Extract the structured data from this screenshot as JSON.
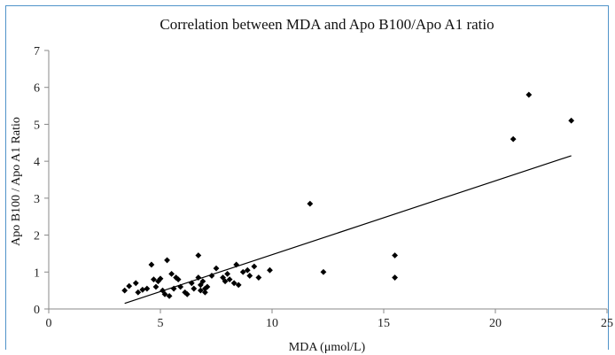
{
  "chart_data": {
    "type": "scatter",
    "title": "Correlation between MDA and Apo B100/Apo A1 ratio",
    "xlabel": "MDA (μmol/L)",
    "ylabel": "Apo B100 / Apo A1 Ratio",
    "xlim": [
      0,
      25
    ],
    "ylim": [
      0,
      7
    ],
    "xticks": [
      "0",
      "5",
      "10",
      "15",
      "20",
      "25"
    ],
    "yticks": [
      "0",
      "1",
      "2",
      "3",
      "4",
      "5",
      "6",
      "7"
    ],
    "grid": false,
    "legend": "none",
    "marker": "diamond",
    "colors": {
      "point": "#000000",
      "line": "#000000",
      "axis": "#888888",
      "frame": "#4f93c9"
    },
    "points": [
      {
        "x": 3.4,
        "y": 0.5
      },
      {
        "x": 3.6,
        "y": 0.62
      },
      {
        "x": 3.9,
        "y": 0.7
      },
      {
        "x": 4.0,
        "y": 0.45
      },
      {
        "x": 4.2,
        "y": 0.52
      },
      {
        "x": 4.4,
        "y": 0.55
      },
      {
        "x": 4.6,
        "y": 1.2
      },
      {
        "x": 4.7,
        "y": 0.8
      },
      {
        "x": 4.8,
        "y": 0.6
      },
      {
        "x": 4.9,
        "y": 0.75
      },
      {
        "x": 5.0,
        "y": 0.82
      },
      {
        "x": 5.1,
        "y": 0.5
      },
      {
        "x": 5.2,
        "y": 0.4
      },
      {
        "x": 5.3,
        "y": 1.32
      },
      {
        "x": 5.4,
        "y": 0.35
      },
      {
        "x": 5.5,
        "y": 0.95
      },
      {
        "x": 5.6,
        "y": 0.55
      },
      {
        "x": 5.7,
        "y": 0.85
      },
      {
        "x": 5.8,
        "y": 0.8
      },
      {
        "x": 5.9,
        "y": 0.6
      },
      {
        "x": 6.1,
        "y": 0.45
      },
      {
        "x": 6.2,
        "y": 0.4
      },
      {
        "x": 6.4,
        "y": 0.7
      },
      {
        "x": 6.5,
        "y": 0.55
      },
      {
        "x": 6.7,
        "y": 1.45
      },
      {
        "x": 6.7,
        "y": 0.85
      },
      {
        "x": 6.8,
        "y": 0.65
      },
      {
        "x": 6.8,
        "y": 0.5
      },
      {
        "x": 6.9,
        "y": 0.75
      },
      {
        "x": 7.0,
        "y": 0.55
      },
      {
        "x": 7.0,
        "y": 0.45
      },
      {
        "x": 7.1,
        "y": 0.6
      },
      {
        "x": 7.3,
        "y": 0.9
      },
      {
        "x": 7.5,
        "y": 1.1
      },
      {
        "x": 7.8,
        "y": 0.85
      },
      {
        "x": 7.9,
        "y": 0.75
      },
      {
        "x": 8.0,
        "y": 0.95
      },
      {
        "x": 8.1,
        "y": 0.8
      },
      {
        "x": 8.3,
        "y": 0.7
      },
      {
        "x": 8.4,
        "y": 1.2
      },
      {
        "x": 8.5,
        "y": 0.65
      },
      {
        "x": 8.7,
        "y": 1.0
      },
      {
        "x": 8.9,
        "y": 1.05
      },
      {
        "x": 9.0,
        "y": 0.9
      },
      {
        "x": 9.2,
        "y": 1.15
      },
      {
        "x": 9.4,
        "y": 0.85
      },
      {
        "x": 9.9,
        "y": 1.05
      },
      {
        "x": 11.7,
        "y": 2.85
      },
      {
        "x": 12.3,
        "y": 1.0
      },
      {
        "x": 15.5,
        "y": 1.45
      },
      {
        "x": 15.5,
        "y": 0.85
      },
      {
        "x": 20.8,
        "y": 4.6
      },
      {
        "x": 21.5,
        "y": 5.8
      },
      {
        "x": 23.4,
        "y": 5.1
      }
    ],
    "trendline": {
      "type": "linear",
      "x": [
        3.4,
        23.4
      ],
      "y": [
        0.15,
        4.15
      ]
    }
  }
}
